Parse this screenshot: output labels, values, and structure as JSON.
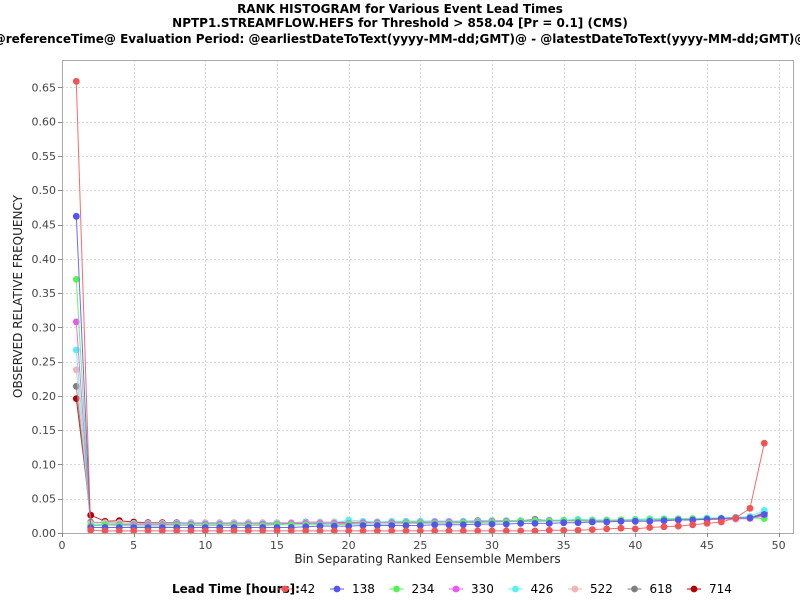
{
  "chart_data": {
    "type": "line",
    "title_lines": [
      "RANK HISTOGRAM for Various Event Lead Times",
      "NPTP1.STREAMFLOW.HEFS for Threshold > 858.04 [Pr = 0.1] (CMS)",
      "@referenceTime@ Evaluation Period: @earliestDateToText(yyyy-MM-dd;GMT)@ - @latestDateToText(yyyy-MM-dd;GMT)@"
    ],
    "xlabel": "Bin Separating Ranked Eensemble Members",
    "ylabel": "OBSERVED RELATIVE FREQUENCY",
    "xlim": [
      0,
      51
    ],
    "ylim": [
      0,
      0.69
    ],
    "xticks": [
      0,
      5,
      10,
      15,
      20,
      25,
      30,
      35,
      40,
      45,
      50
    ],
    "xtick_labels": [
      "0",
      "5",
      "10",
      "15",
      "20",
      "25",
      "30",
      "35",
      "40",
      "45",
      "50"
    ],
    "yticks": [
      0.0,
      0.05,
      0.1,
      0.15,
      0.2,
      0.25,
      0.3,
      0.35,
      0.4,
      0.45,
      0.5,
      0.55,
      0.6,
      0.65
    ],
    "ytick_labels": [
      "0.00",
      "0.05",
      "0.10",
      "0.15",
      "0.20",
      "0.25",
      "0.30",
      "0.35",
      "0.40",
      "0.45",
      "0.50",
      "0.55",
      "0.60",
      "0.65"
    ],
    "grid": true,
    "legend": {
      "title": "Lead Time [hours]:",
      "placement": "bottom"
    },
    "x": [
      1,
      2,
      3,
      4,
      5,
      6,
      7,
      8,
      9,
      10,
      11,
      12,
      13,
      14,
      15,
      16,
      17,
      18,
      19,
      20,
      21,
      22,
      23,
      24,
      25,
      26,
      27,
      28,
      29,
      30,
      31,
      32,
      33,
      34,
      35,
      36,
      37,
      38,
      39,
      40,
      41,
      42,
      43,
      44,
      45,
      46,
      47,
      48,
      49
    ],
    "series": [
      {
        "name": "42",
        "color": "#f25454",
        "values": [
          0.659,
          0.004,
          0.003,
          0.003,
          0.003,
          0.003,
          0.003,
          0.003,
          0.003,
          0.003,
          0.003,
          0.003,
          0.003,
          0.003,
          0.003,
          0.003,
          0.003,
          0.003,
          0.003,
          0.003,
          0.003,
          0.003,
          0.003,
          0.003,
          0.003,
          0.003,
          0.003,
          0.003,
          0.003,
          0.003,
          0.003,
          0.003,
          0.003,
          0.004,
          0.004,
          0.004,
          0.005,
          0.006,
          0.007,
          0.006,
          0.008,
          0.009,
          0.01,
          0.012,
          0.014,
          0.016,
          0.022,
          0.036,
          0.131
        ]
      },
      {
        "name": "138",
        "color": "#5454f2",
        "values": [
          0.462,
          0.008,
          0.008,
          0.008,
          0.008,
          0.008,
          0.008,
          0.008,
          0.008,
          0.008,
          0.008,
          0.008,
          0.008,
          0.008,
          0.008,
          0.008,
          0.009,
          0.01,
          0.01,
          0.01,
          0.011,
          0.011,
          0.011,
          0.011,
          0.011,
          0.012,
          0.012,
          0.012,
          0.013,
          0.013,
          0.013,
          0.014,
          0.014,
          0.014,
          0.015,
          0.015,
          0.016,
          0.016,
          0.017,
          0.017,
          0.017,
          0.018,
          0.019,
          0.019,
          0.02,
          0.021,
          0.022,
          0.022,
          0.027
        ]
      },
      {
        "name": "234",
        "color": "#54f254",
        "values": [
          0.37,
          0.01,
          0.012,
          0.011,
          0.01,
          0.01,
          0.01,
          0.011,
          0.011,
          0.011,
          0.011,
          0.011,
          0.011,
          0.011,
          0.012,
          0.012,
          0.012,
          0.012,
          0.012,
          0.013,
          0.013,
          0.013,
          0.013,
          0.014,
          0.014,
          0.014,
          0.014,
          0.015,
          0.015,
          0.016,
          0.016,
          0.017,
          0.017,
          0.017,
          0.018,
          0.018,
          0.018,
          0.018,
          0.019,
          0.019,
          0.019,
          0.02,
          0.02,
          0.021,
          0.021,
          0.021,
          0.022,
          0.022,
          0.021
        ]
      },
      {
        "name": "330",
        "color": "#f254f2",
        "values": [
          0.308,
          0.01,
          0.012,
          0.012,
          0.012,
          0.012,
          0.012,
          0.013,
          0.013,
          0.013,
          0.013,
          0.013,
          0.013,
          0.013,
          0.013,
          0.014,
          0.014,
          0.014,
          0.014,
          0.014,
          0.015,
          0.015,
          0.015,
          0.015,
          0.015,
          0.016,
          0.016,
          0.016,
          0.016,
          0.017,
          0.017,
          0.017,
          0.017,
          0.018,
          0.018,
          0.018,
          0.018,
          0.018,
          0.019,
          0.019,
          0.019,
          0.019,
          0.02,
          0.02,
          0.02,
          0.021,
          0.021,
          0.022,
          0.025
        ]
      },
      {
        "name": "426",
        "color": "#54f2f2",
        "values": [
          0.267,
          0.012,
          0.013,
          0.013,
          0.013,
          0.013,
          0.013,
          0.014,
          0.014,
          0.014,
          0.014,
          0.014,
          0.014,
          0.014,
          0.014,
          0.014,
          0.015,
          0.015,
          0.015,
          0.019,
          0.017,
          0.016,
          0.017,
          0.017,
          0.017,
          0.017,
          0.017,
          0.017,
          0.017,
          0.018,
          0.018,
          0.018,
          0.018,
          0.019,
          0.019,
          0.02,
          0.019,
          0.019,
          0.019,
          0.02,
          0.021,
          0.021,
          0.021,
          0.021,
          0.022,
          0.022,
          0.023,
          0.024,
          0.033
        ]
      },
      {
        "name": "522",
        "color": "#f2b4b4",
        "values": [
          0.238,
          0.014,
          0.015,
          0.015,
          0.014,
          0.014,
          0.014,
          0.014,
          0.015,
          0.015,
          0.015,
          0.015,
          0.015,
          0.015,
          0.015,
          0.015,
          0.015,
          0.016,
          0.016,
          0.016,
          0.016,
          0.016,
          0.016,
          0.016,
          0.016,
          0.016,
          0.016,
          0.017,
          0.017,
          0.017,
          0.017,
          0.017,
          0.017,
          0.018,
          0.018,
          0.018,
          0.018,
          0.018,
          0.018,
          0.018,
          0.019,
          0.019,
          0.019,
          0.019,
          0.02,
          0.02,
          0.02,
          0.021,
          0.024
        ]
      },
      {
        "name": "618",
        "color": "#808080",
        "values": [
          0.214,
          0.016,
          0.015,
          0.015,
          0.014,
          0.014,
          0.014,
          0.015,
          0.015,
          0.015,
          0.015,
          0.015,
          0.015,
          0.015,
          0.015,
          0.015,
          0.016,
          0.016,
          0.016,
          0.016,
          0.016,
          0.016,
          0.016,
          0.017,
          0.017,
          0.017,
          0.017,
          0.017,
          0.018,
          0.018,
          0.018,
          0.018,
          0.02,
          0.018,
          0.018,
          0.019,
          0.019,
          0.019,
          0.019,
          0.019,
          0.019,
          0.02,
          0.02,
          0.02,
          0.021,
          0.021,
          0.021,
          0.022,
          0.03
        ]
      },
      {
        "name": "714",
        "color": "#b40000",
        "values": [
          0.196,
          0.026,
          0.017,
          0.018,
          0.016,
          0.015,
          0.015,
          0.015,
          0.014,
          0.014,
          0.014,
          0.014,
          0.014,
          0.014,
          0.014,
          0.014,
          0.014,
          0.015,
          0.015,
          0.015,
          0.015,
          0.016,
          0.016,
          0.016,
          0.016,
          0.016,
          0.016,
          0.016,
          0.018,
          0.017,
          0.017,
          0.017,
          0.018,
          0.018,
          0.018,
          0.018,
          0.018,
          0.018,
          0.018,
          0.019,
          0.019,
          0.02,
          0.02,
          0.02,
          0.02,
          0.02,
          0.021,
          0.021,
          0.029
        ]
      }
    ]
  }
}
